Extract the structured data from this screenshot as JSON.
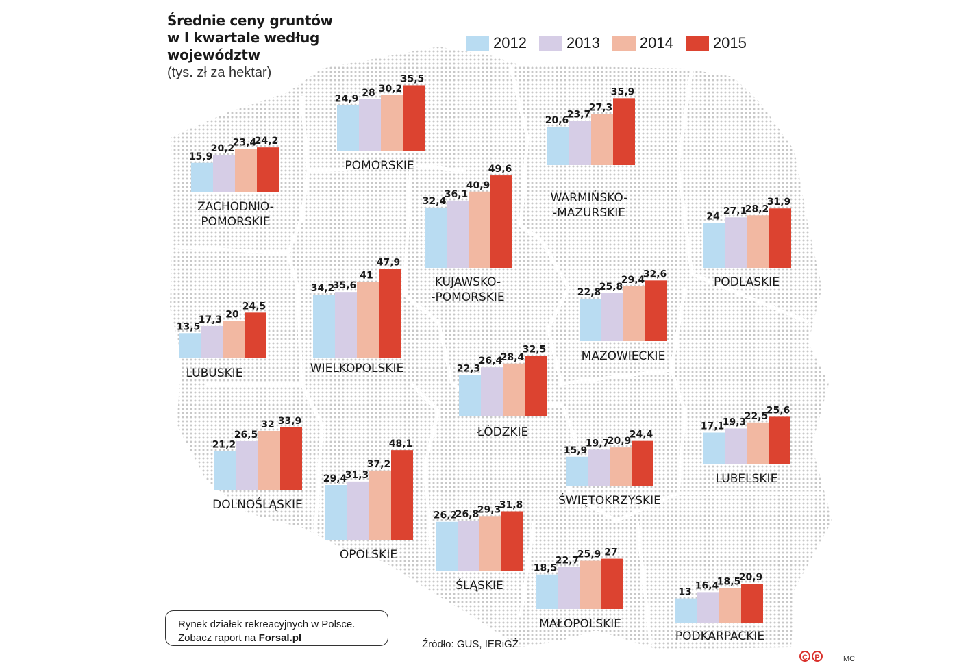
{
  "title": {
    "line1": "Średnie ceny gruntów",
    "line2": "w I kwartale według",
    "line3": "województw",
    "subtitle": "(tys. zł za hektar)"
  },
  "legend": [
    {
      "label": "2012",
      "color": "#b9dcf2"
    },
    {
      "label": "2013",
      "color": "#d6cde6"
    },
    {
      "label": "2014",
      "color": "#f2b8a2"
    },
    {
      "label": "2015",
      "color": "#dc4330"
    }
  ],
  "chart_data": {
    "type": "bar",
    "title": "Średnie ceny gruntów w I kwartale według województw",
    "ylabel": "tys. zł za hektar",
    "series_names": [
      "2012",
      "2013",
      "2014",
      "2015"
    ],
    "regions": [
      {
        "name": [
          "ZACHODNIO-",
          "POMORSKIE"
        ],
        "values": [
          15.9,
          20.2,
          23.4,
          24.2
        ],
        "labels": [
          "15,9",
          "20,2",
          "23,4",
          "24,2"
        ]
      },
      {
        "name": [
          "POMORSKIE"
        ],
        "values": [
          24.9,
          28,
          30.2,
          35.5
        ],
        "labels": [
          "24,9",
          "28",
          "30,2",
          "35,5"
        ]
      },
      {
        "name": [
          "WARMIŃSKO-",
          "-MAZURSKIE"
        ],
        "values": [
          20.6,
          23.7,
          27.3,
          35.9
        ],
        "labels": [
          "20,6",
          "23,7",
          "27,3",
          "35,9"
        ]
      },
      {
        "name": [
          "KUJAWSKO-",
          "-POMORSKIE"
        ],
        "values": [
          32.4,
          36.1,
          40.9,
          49.6
        ],
        "labels": [
          "32,4",
          "36,1",
          "40,9",
          "49,6"
        ]
      },
      {
        "name": [
          "PODLASKIE"
        ],
        "values": [
          24,
          27.1,
          28.2,
          31.9
        ],
        "labels": [
          "24",
          "27,1",
          "28,2",
          "31,9"
        ]
      },
      {
        "name": [
          "WIELKOPOLSKIE"
        ],
        "values": [
          34.2,
          35.6,
          41,
          47.9
        ],
        "labels": [
          "34,2",
          "35,6",
          "41",
          "47,9"
        ]
      },
      {
        "name": [
          "LUBUSKIE"
        ],
        "values": [
          13.5,
          17.3,
          20,
          24.5
        ],
        "labels": [
          "13,5",
          "17,3",
          "20",
          "24,5"
        ]
      },
      {
        "name": [
          "MAZOWIECKIE"
        ],
        "values": [
          22.8,
          25.8,
          29.4,
          32.6
        ],
        "labels": [
          "22,8",
          "25,8",
          "29,4",
          "32,6"
        ]
      },
      {
        "name": [
          "ŁÓDZKIE"
        ],
        "values": [
          22.3,
          26.4,
          28.4,
          32.5
        ],
        "labels": [
          "22,3",
          "26,4",
          "28,4",
          "32,5"
        ]
      },
      {
        "name": [
          "DOLNOŚLĄSKIE"
        ],
        "values": [
          21.2,
          26.5,
          32,
          33.9
        ],
        "labels": [
          "21,2",
          "26,5",
          "32",
          "33,9"
        ]
      },
      {
        "name": [
          "OPOLSKIE"
        ],
        "values": [
          29.4,
          31.3,
          37.2,
          48.1
        ],
        "labels": [
          "29,4",
          "31,3",
          "37,2",
          "48,1"
        ]
      },
      {
        "name": [
          "LUBELSKIE"
        ],
        "values": [
          17.1,
          19.3,
          22.5,
          25.6
        ],
        "labels": [
          "17,1",
          "19,3",
          "22,5",
          "25,6"
        ]
      },
      {
        "name": [
          "ŚWIĘTOKRZYSKIE"
        ],
        "values": [
          15.9,
          19.7,
          20.9,
          24.4
        ],
        "labels": [
          "15,9",
          "19,7",
          "20,9",
          "24,4"
        ]
      },
      {
        "name": [
          "ŚLĄSKIE"
        ],
        "values": [
          26.2,
          26.8,
          29.3,
          31.8
        ],
        "labels": [
          "26,2",
          "26,8",
          "29,3",
          "31,8"
        ]
      },
      {
        "name": [
          "MAŁOPOLSKIE"
        ],
        "values": [
          18.5,
          22.7,
          25.9,
          27
        ],
        "labels": [
          "18,5",
          "22,7",
          "25,9",
          "27"
        ]
      },
      {
        "name": [
          "PODKARPACKIE"
        ],
        "values": [
          13,
          16.4,
          18.5,
          20.9
        ],
        "labels": [
          "13",
          "16,4",
          "18,5",
          "20,9"
        ]
      }
    ]
  },
  "promo": {
    "line1": "Rynek działek rekreacyjnych w Polsce.",
    "line2_prefix": "Zobacz raport na ",
    "line2_link": "Forsal.pl"
  },
  "source": "Źródło: GUS, IERiGŻ",
  "author": "MC",
  "logo": {
    "c": "C",
    "p": "P"
  }
}
